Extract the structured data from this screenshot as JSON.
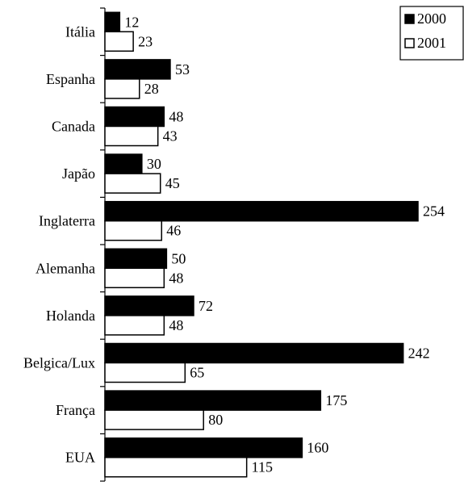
{
  "chart_data": {
    "type": "bar",
    "orientation": "horizontal",
    "categories": [
      "Itália",
      "Espanha",
      "Canada",
      "Japão",
      "Inglaterra",
      "Alemanha",
      "Holanda",
      "Belgica/Lux",
      "França",
      "EUA"
    ],
    "series": [
      {
        "name": "2000",
        "color": "#000000",
        "values": [
          12,
          53,
          48,
          30,
          254,
          50,
          72,
          242,
          175,
          160
        ]
      },
      {
        "name": "2001",
        "color": "#ffffff",
        "values": [
          23,
          28,
          43,
          45,
          46,
          48,
          48,
          65,
          80,
          115
        ]
      }
    ],
    "title": "",
    "xlabel": "",
    "ylabel": "",
    "xlim": [
      0,
      254
    ],
    "data_labels": true,
    "grid": false,
    "legend": {
      "position": "top-right"
    }
  }
}
